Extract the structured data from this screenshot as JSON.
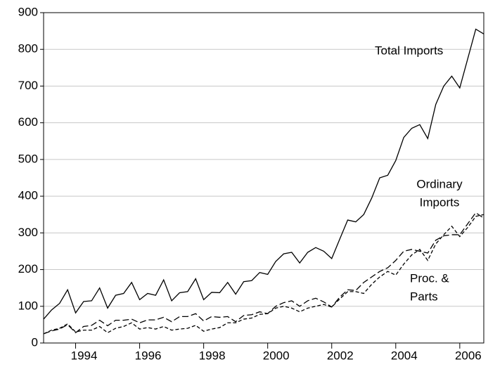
{
  "chart_data": {
    "type": "line",
    "x": [
      1993,
      1993.25,
      1993.5,
      1993.75,
      1994,
      1994.25,
      1994.5,
      1994.75,
      1995,
      1995.25,
      1995.5,
      1995.75,
      1996,
      1996.25,
      1996.5,
      1996.75,
      1997,
      1997.25,
      1997.5,
      1997.75,
      1998,
      1998.25,
      1998.5,
      1998.75,
      1999,
      1999.25,
      1999.5,
      1999.75,
      2000,
      2000.25,
      2000.5,
      2000.75,
      2001,
      2001.25,
      2001.5,
      2001.75,
      2002,
      2002.25,
      2002.5,
      2002.75,
      2003,
      2003.25,
      2003.5,
      2003.75,
      2004,
      2004.25,
      2004.5,
      2004.75,
      2005,
      2005.25,
      2005.5,
      2005.75,
      2006,
      2006.25,
      2006.5,
      2006.75
    ],
    "series": [
      {
        "color": "#000000",
        "line_style": "solid",
        "values": [
          65,
          90,
          108,
          145,
          82,
          113,
          115,
          150,
          95,
          130,
          135,
          165,
          118,
          135,
          130,
          172,
          115,
          137,
          140,
          175,
          118,
          138,
          137,
          165,
          133,
          167,
          170,
          192,
          187,
          222,
          243,
          247,
          218,
          247,
          260,
          250,
          230,
          283,
          335,
          330,
          350,
          395,
          450,
          457,
          497,
          560,
          585,
          595,
          557,
          650,
          700,
          727,
          695,
          775,
          855,
          842
        ]
      },
      {
        "color": "#000000",
        "line_style": "long-dash",
        "values": [
          25,
          33,
          38,
          50,
          28,
          45,
          48,
          62,
          47,
          62,
          62,
          65,
          55,
          63,
          63,
          70,
          58,
          72,
          72,
          80,
          60,
          72,
          70,
          72,
          58,
          75,
          77,
          85,
          80,
          100,
          110,
          115,
          100,
          115,
          122,
          112,
          98,
          125,
          145,
          143,
          165,
          180,
          195,
          205,
          225,
          250,
          255,
          250,
          245,
          280,
          292,
          295,
          295,
          325,
          355,
          340
        ]
      },
      {
        "color": "#000000",
        "line_style": "short-dash",
        "values": [
          25,
          35,
          40,
          52,
          30,
          35,
          35,
          45,
          28,
          40,
          45,
          55,
          38,
          42,
          38,
          45,
          35,
          38,
          40,
          48,
          32,
          38,
          42,
          55,
          55,
          65,
          68,
          78,
          80,
          95,
          100,
          95,
          85,
          95,
          100,
          105,
          98,
          120,
          140,
          140,
          135,
          160,
          180,
          195,
          185,
          215,
          240,
          255,
          225,
          270,
          295,
          318,
          290,
          315,
          345,
          350
        ]
      }
    ],
    "annotations": [
      [
        "Total Imports"
      ],
      [
        "Ordinary",
        "Imports"
      ],
      [
        "Proc. &",
        "Parts"
      ]
    ],
    "xlim": [
      1993,
      2006.75
    ],
    "xticks": [
      1994,
      1996,
      1998,
      2000,
      2002,
      2004,
      2006
    ],
    "ylim": [
      0,
      900
    ],
    "yticks": [
      0,
      100,
      200,
      300,
      400,
      500,
      600,
      700,
      800,
      900
    ],
    "grid": true
  }
}
